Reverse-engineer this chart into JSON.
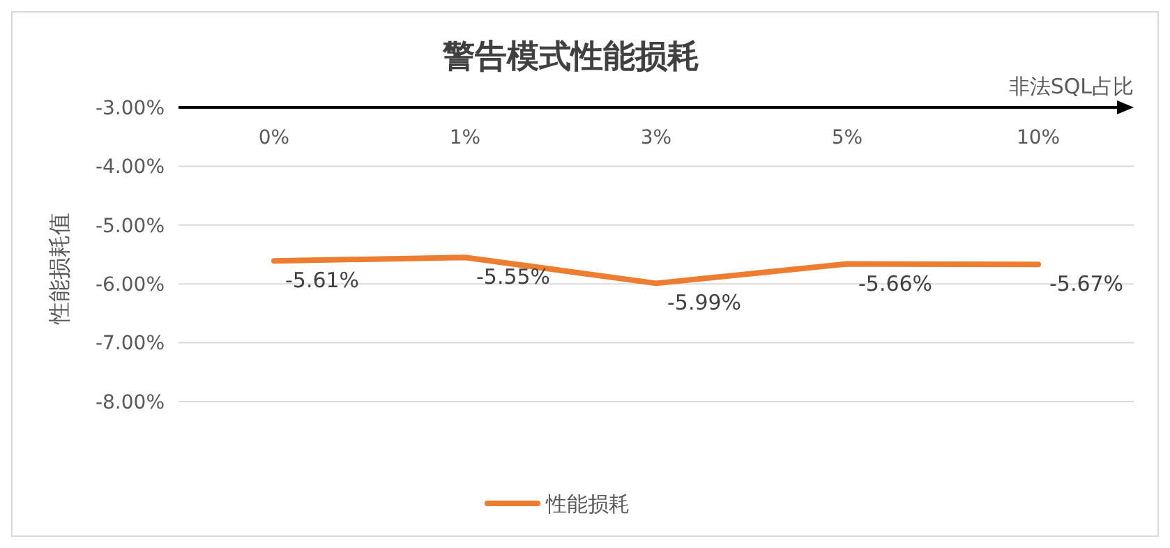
{
  "chart_data": {
    "type": "line",
    "title": "警告模式性能损耗",
    "xlabel": "非法SQL占比",
    "ylabel": "性能损耗值",
    "categories": [
      "0%",
      "1%",
      "3%",
      "5%",
      "10%"
    ],
    "series": [
      {
        "name": "性能损耗",
        "color": "#ed7d31",
        "values": [
          -5.61,
          -5.55,
          -5.99,
          -5.66,
          -5.67
        ],
        "value_labels": [
          "-5.61%",
          "-5.55%",
          "-5.99%",
          "-5.66%",
          "-5.67%"
        ]
      }
    ],
    "ylim": [
      -8,
      -3
    ],
    "yticks": [
      {
        "value": -3,
        "label": "-3.00%"
      },
      {
        "value": -4,
        "label": "-4.00%"
      },
      {
        "value": -5,
        "label": "-5.00%"
      },
      {
        "value": -6,
        "label": "-6.00%"
      },
      {
        "value": -7,
        "label": "-7.00%"
      },
      {
        "value": -8,
        "label": "-8.00%"
      }
    ],
    "grid": "y",
    "legend": "bottom",
    "marker": "none",
    "line_style": "solid"
  }
}
